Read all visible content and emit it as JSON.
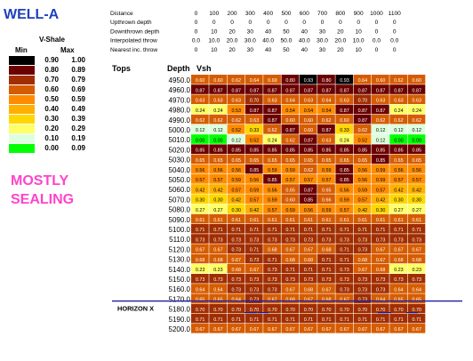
{
  "title": "WELL-A",
  "note": [
    "MOSTLY",
    "SEALING"
  ],
  "legend": {
    "title": "V-Shale",
    "min_header": "Min",
    "max_header": "Max",
    "bins": [
      {
        "min": "0.90",
        "max": "1.00",
        "color": "#000000"
      },
      {
        "min": "0.80",
        "max": "0.89",
        "color": "#6b0000"
      },
      {
        "min": "0.70",
        "max": "0.79",
        "color": "#a12e00"
      },
      {
        "min": "0.60",
        "max": "0.69",
        "color": "#d65c00"
      },
      {
        "min": "0.50",
        "max": "0.59",
        "color": "#ff8c00"
      },
      {
        "min": "0.40",
        "max": "0.49",
        "color": "#ffb000"
      },
      {
        "min": "0.30",
        "max": "0.39",
        "color": "#ffd700"
      },
      {
        "min": "0.20",
        "max": "0.29",
        "color": "#ffff66"
      },
      {
        "min": "0.10",
        "max": "0.19",
        "color": "#ddffdd"
      },
      {
        "min": "0.00",
        "max": "0.09",
        "color": "#00ff00"
      }
    ]
  },
  "chart_data": {
    "type": "heatmap",
    "row_header_tops": "Tops",
    "row_header_depth": "Depth",
    "row_header_vsh": "Vsh",
    "horizon_label": "HORIZON X",
    "header_rows": [
      {
        "label": "Distance",
        "values": [
          "0",
          "100",
          "200",
          "300",
          "400",
          "500",
          "600",
          "700",
          "800",
          "900",
          "1000",
          "1100"
        ]
      },
      {
        "label": "Upthrown depth",
        "values": [
          "0",
          "0",
          "0",
          "0",
          "0",
          "0",
          "0",
          "0",
          "0",
          "0",
          "0",
          "0"
        ]
      },
      {
        "label": "Downthrown depth",
        "values": [
          "0",
          "10",
          "20",
          "30",
          "40",
          "50",
          "40",
          "30",
          "20",
          "10",
          "0",
          "0"
        ]
      },
      {
        "label": "Interpolated throw",
        "values": [
          "0.0",
          "10.0",
          "20.0",
          "30.0",
          "40.0",
          "50.0",
          "40.0",
          "30.0",
          "20.0",
          "10.0",
          "0.0",
          "0.0"
        ]
      },
      {
        "label": "Nearest inc. throw",
        "values": [
          "0",
          "10",
          "20",
          "30",
          "40",
          "50",
          "40",
          "30",
          "20",
          "10",
          "0",
          "0"
        ]
      }
    ],
    "depths": [
      "4950.0",
      "4960.0",
      "4970.0",
      "4980.0",
      "4990.0",
      "5000.0",
      "5010.0",
      "5020.0",
      "5030.0",
      "5040.0",
      "5050.0",
      "5060.0",
      "5070.0",
      "5080.0",
      "5090.0",
      "5100.0",
      "5110.0",
      "5120.0",
      "5130.0",
      "5140.0",
      "5150.0",
      "5160.0",
      "5170.0",
      "5180.0",
      "5190.0",
      "5200.0"
    ],
    "values": [
      [
        0.6,
        0.6,
        0.62,
        0.64,
        0.69,
        0.8,
        0.93,
        0.8,
        0.93,
        0.64,
        0.6,
        0.62,
        0.6
      ],
      [
        0.87,
        0.87,
        0.87,
        0.87,
        0.87,
        0.87,
        0.87,
        0.87,
        0.87,
        0.87,
        0.87,
        0.87,
        0.87
      ],
      [
        0.63,
        0.63,
        0.63,
        0.7,
        0.63,
        0.64,
        0.63,
        0.64,
        0.63,
        0.7,
        0.63,
        0.63,
        0.63
      ],
      [
        0.24,
        0.24,
        0.53,
        0.87,
        0.87,
        0.54,
        0.54,
        0.54,
        0.87,
        0.87,
        0.87,
        0.24,
        0.24
      ],
      [
        0.62,
        0.62,
        0.62,
        0.63,
        0.87,
        0.6,
        0.6,
        0.62,
        0.6,
        0.87,
        0.62,
        0.62,
        0.62
      ],
      [
        0.12,
        0.12,
        0.52,
        0.33,
        0.62,
        0.87,
        0.6,
        0.87,
        0.33,
        0.62,
        0.12,
        0.12,
        0.12
      ],
      [
        0.0,
        0.0,
        0.12,
        0.52,
        0.24,
        0.62,
        0.87,
        0.63,
        0.24,
        0.52,
        0.12,
        0.0,
        0.0
      ],
      [
        0.85,
        0.85,
        0.85,
        0.85,
        0.85,
        0.85,
        0.85,
        0.85,
        0.85,
        0.85,
        0.85,
        0.85,
        0.85
      ],
      [
        0.65,
        0.65,
        0.65,
        0.65,
        0.65,
        0.65,
        0.65,
        0.65,
        0.65,
        0.65,
        0.85,
        0.65,
        0.65
      ],
      [
        0.56,
        0.56,
        0.56,
        0.85,
        0.59,
        0.59,
        0.62,
        0.59,
        0.85,
        0.56,
        0.59,
        0.56,
        0.56
      ],
      [
        0.57,
        0.57,
        0.59,
        0.56,
        0.85,
        0.57,
        0.57,
        0.57,
        0.85,
        0.56,
        0.59,
        0.57,
        0.57
      ],
      [
        0.42,
        0.42,
        0.57,
        0.59,
        0.56,
        0.65,
        0.87,
        0.65,
        0.56,
        0.59,
        0.57,
        0.42,
        0.42
      ],
      [
        0.3,
        0.3,
        0.42,
        0.57,
        0.59,
        0.6,
        0.85,
        0.66,
        0.59,
        0.57,
        0.42,
        0.3,
        0.3
      ],
      [
        0.27,
        0.27,
        0.3,
        0.42,
        0.57,
        0.59,
        0.56,
        0.59,
        0.57,
        0.42,
        0.3,
        0.27,
        0.27
      ],
      [
        0.61,
        0.61,
        0.61,
        0.61,
        0.61,
        0.61,
        0.61,
        0.61,
        0.61,
        0.61,
        0.61,
        0.61,
        0.61
      ],
      [
        0.71,
        0.71,
        0.71,
        0.71,
        0.71,
        0.71,
        0.71,
        0.71,
        0.71,
        0.71,
        0.71,
        0.71,
        0.71
      ],
      [
        0.73,
        0.73,
        0.73,
        0.73,
        0.73,
        0.73,
        0.73,
        0.73,
        0.73,
        0.73,
        0.73,
        0.73,
        0.73
      ],
      [
        0.67,
        0.67,
        0.73,
        0.71,
        0.68,
        0.67,
        0.67,
        0.68,
        0.71,
        0.73,
        0.67,
        0.67,
        0.67
      ],
      [
        0.68,
        0.68,
        0.67,
        0.73,
        0.71,
        0.68,
        0.68,
        0.71,
        0.71,
        0.68,
        0.67,
        0.68,
        0.68
      ],
      [
        0.23,
        0.23,
        0.68,
        0.67,
        0.73,
        0.71,
        0.71,
        0.71,
        0.73,
        0.67,
        0.68,
        0.23,
        0.23
      ],
      [
        0.73,
        0.73,
        0.73,
        0.73,
        0.73,
        0.73,
        0.73,
        0.73,
        0.73,
        0.73,
        0.73,
        0.73,
        0.73
      ],
      [
        0.64,
        0.64,
        0.73,
        0.73,
        0.73,
        0.67,
        0.68,
        0.67,
        0.73,
        0.73,
        0.73,
        0.64,
        0.64
      ],
      [
        0.65,
        0.65,
        0.64,
        0.73,
        0.67,
        0.68,
        0.67,
        0.68,
        0.67,
        0.73,
        0.64,
        0.65,
        0.65
      ],
      [
        0.7,
        0.7,
        0.7,
        0.7,
        0.7,
        0.7,
        0.7,
        0.7,
        0.7,
        0.7,
        0.7,
        0.7,
        0.7
      ],
      [
        0.71,
        0.71,
        0.71,
        0.71,
        0.71,
        0.71,
        0.71,
        0.71,
        0.71,
        0.71,
        0.71,
        0.71,
        0.71
      ],
      [
        0.67,
        0.67,
        0.67,
        0.67,
        0.67,
        0.67,
        0.67,
        0.67,
        0.67,
        0.67,
        0.67,
        0.67,
        0.67
      ]
    ]
  }
}
